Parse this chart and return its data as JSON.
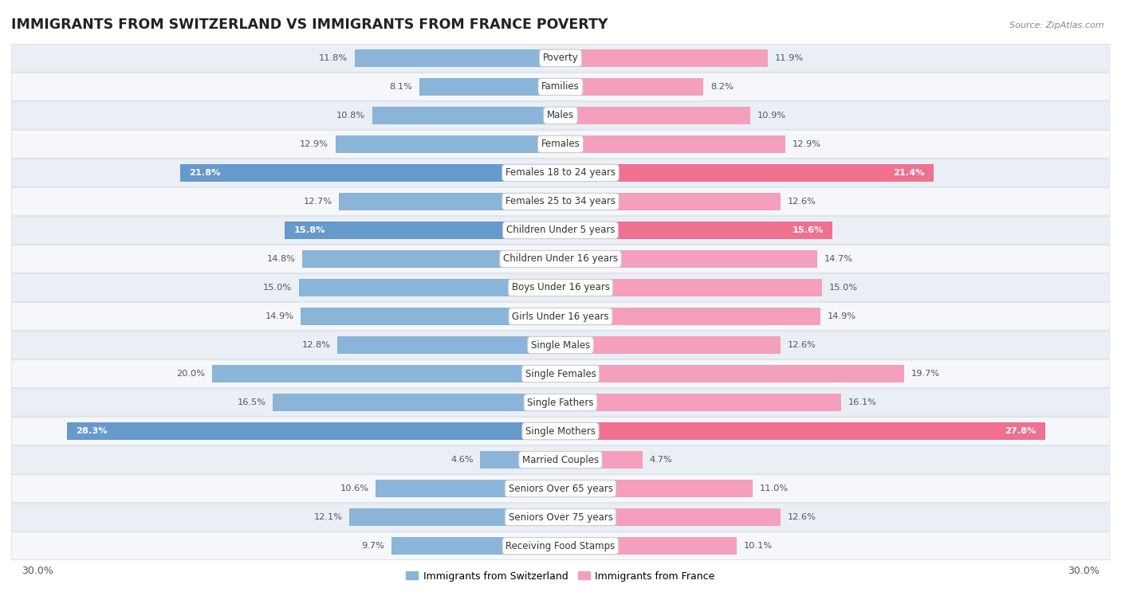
{
  "title": "IMMIGRANTS FROM SWITZERLAND VS IMMIGRANTS FROM FRANCE POVERTY",
  "source": "Source: ZipAtlas.com",
  "categories": [
    "Poverty",
    "Families",
    "Males",
    "Females",
    "Females 18 to 24 years",
    "Females 25 to 34 years",
    "Children Under 5 years",
    "Children Under 16 years",
    "Boys Under 16 years",
    "Girls Under 16 years",
    "Single Males",
    "Single Females",
    "Single Fathers",
    "Single Mothers",
    "Married Couples",
    "Seniors Over 65 years",
    "Seniors Over 75 years",
    "Receiving Food Stamps"
  ],
  "switzerland_values": [
    11.8,
    8.1,
    10.8,
    12.9,
    21.8,
    12.7,
    15.8,
    14.8,
    15.0,
    14.9,
    12.8,
    20.0,
    16.5,
    28.3,
    4.6,
    10.6,
    12.1,
    9.7
  ],
  "france_values": [
    11.9,
    8.2,
    10.9,
    12.9,
    21.4,
    12.6,
    15.6,
    14.7,
    15.0,
    14.9,
    12.6,
    19.7,
    16.1,
    27.8,
    4.7,
    11.0,
    12.6,
    10.1
  ],
  "switzerland_color": "#8ab4d8",
  "france_color": "#f4a0bc",
  "highlight_switzerland_color": "#6699cc",
  "highlight_france_color": "#f07090",
  "highlight_rows": [
    4,
    11,
    13
  ],
  "axis_limit": 30.0,
  "bar_height": 0.62,
  "bg_color": "#ffffff",
  "row_alt_color": "#eaeff5",
  "row_base_color": "#f5f7fa",
  "label_fontsize": 8.5,
  "value_fontsize": 8.2,
  "title_fontsize": 12.5,
  "legend_fontsize": 9,
  "xlabel_fontsize": 9
}
